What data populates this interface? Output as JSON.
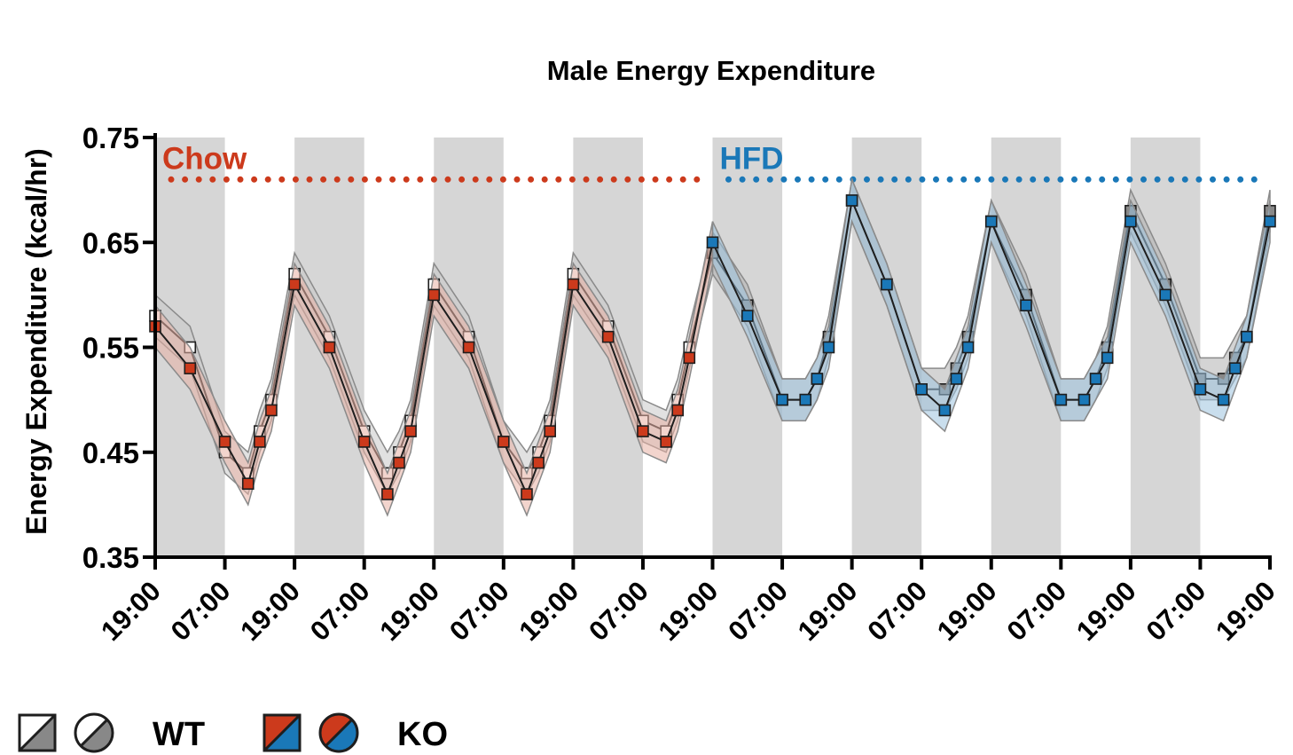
{
  "chart_data": {
    "type": "line",
    "title": "Male Energy Expenditure",
    "xlabel": "",
    "ylabel": "Energy Expenditure (kcal/hr)",
    "ylim": [
      0.35,
      0.75
    ],
    "yticks": [
      "0.35",
      "0.45",
      "0.55",
      "0.65",
      "0.75"
    ],
    "xticks": [
      "19:00",
      "07:00",
      "19:00",
      "07:00",
      "19:00",
      "07:00",
      "19:00",
      "07:00",
      "19:00",
      "07:00",
      "19:00",
      "07:00",
      "19:00",
      "07:00",
      "19:00",
      "07:00",
      "19:00"
    ],
    "x_unit": "hours from first 19:00",
    "xlim": [
      0,
      192
    ],
    "dark_periods": [
      [
        0,
        12
      ],
      [
        24,
        36
      ],
      [
        48,
        60
      ],
      [
        72,
        84
      ],
      [
        96,
        108
      ],
      [
        120,
        132
      ],
      [
        144,
        156
      ],
      [
        168,
        180
      ]
    ],
    "phases": [
      {
        "label": "Chow",
        "start": 0,
        "end": 96,
        "color": "#cc3a1c",
        "y": 0.71
      },
      {
        "label": "HFD",
        "start": 96,
        "end": 192,
        "color": "#1a78b8",
        "y": 0.71
      }
    ],
    "series": [
      {
        "name": "WT",
        "marker": "square",
        "chow_fill": "#ffffff",
        "hfd_fill": "#888888",
        "x": [
          0,
          6,
          12,
          16,
          18,
          20,
          24,
          30,
          36,
          40,
          42,
          44,
          48,
          54,
          60,
          64,
          66,
          68,
          72,
          78,
          84,
          88,
          90,
          92,
          96,
          102,
          108,
          112,
          114,
          116,
          120,
          126,
          132,
          136,
          138,
          140,
          144,
          150,
          156,
          160,
          162,
          164,
          168,
          174,
          180,
          184,
          186,
          188,
          192
        ],
        "values": [
          0.58,
          0.55,
          0.45,
          0.43,
          0.47,
          0.5,
          0.62,
          0.56,
          0.47,
          0.43,
          0.45,
          0.48,
          0.61,
          0.56,
          0.46,
          0.43,
          0.45,
          0.48,
          0.62,
          0.57,
          0.48,
          0.47,
          0.5,
          0.55,
          0.64,
          0.59,
          0.5,
          0.5,
          0.52,
          0.56,
          0.69,
          0.61,
          0.51,
          0.51,
          0.53,
          0.56,
          0.67,
          0.6,
          0.5,
          0.5,
          0.52,
          0.55,
          0.68,
          0.61,
          0.52,
          0.52,
          0.54,
          0.56,
          0.68
        ]
      },
      {
        "name": "KO",
        "marker": "square",
        "chow_fill": "#cc3a1c",
        "hfd_fill": "#1a78b8",
        "x": [
          0,
          6,
          12,
          16,
          18,
          20,
          24,
          30,
          36,
          40,
          42,
          44,
          48,
          54,
          60,
          64,
          66,
          68,
          72,
          78,
          84,
          88,
          90,
          92,
          96,
          102,
          108,
          112,
          114,
          116,
          120,
          126,
          132,
          136,
          138,
          140,
          144,
          150,
          156,
          160,
          162,
          164,
          168,
          174,
          180,
          184,
          186,
          188,
          192
        ],
        "values": [
          0.57,
          0.53,
          0.46,
          0.42,
          0.46,
          0.49,
          0.61,
          0.55,
          0.46,
          0.41,
          0.44,
          0.47,
          0.6,
          0.55,
          0.46,
          0.41,
          0.44,
          0.47,
          0.61,
          0.56,
          0.47,
          0.46,
          0.49,
          0.54,
          0.65,
          0.58,
          0.5,
          0.5,
          0.52,
          0.55,
          0.69,
          0.61,
          0.51,
          0.49,
          0.52,
          0.55,
          0.67,
          0.59,
          0.5,
          0.5,
          0.52,
          0.54,
          0.67,
          0.6,
          0.51,
          0.5,
          0.53,
          0.56,
          0.67
        ]
      }
    ],
    "legend": [
      {
        "label": "WT",
        "colors": [
          "#ffffff",
          "#888888"
        ]
      },
      {
        "label": "KO",
        "colors": [
          "#cc3a1c",
          "#1a78b8"
        ]
      }
    ]
  }
}
